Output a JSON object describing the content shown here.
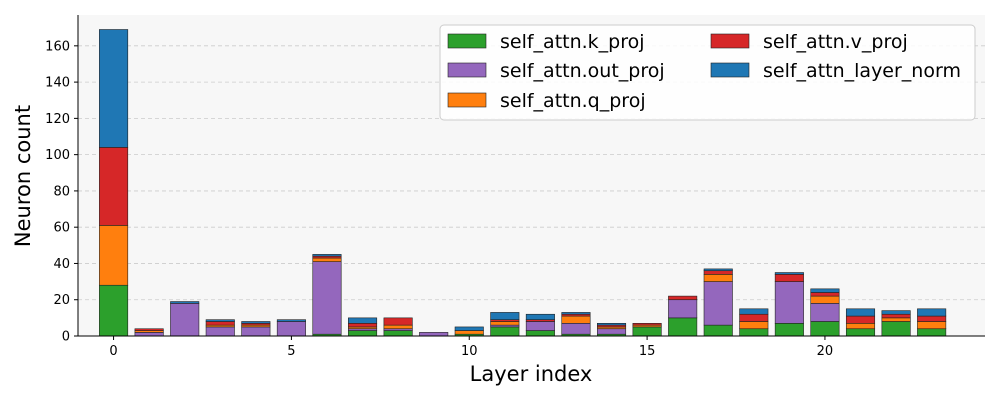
{
  "chart_data": {
    "type": "bar",
    "stacked": true,
    "xlabel": "Layer index",
    "ylabel": "Neuron count",
    "xlim": [
      -1,
      24.5
    ],
    "ylim": [
      0,
      177
    ],
    "xticks": [
      0,
      5,
      10,
      15,
      20
    ],
    "yticks": [
      0,
      20,
      40,
      60,
      80,
      100,
      120,
      140,
      160
    ],
    "grid": "y-dashed",
    "legend_position": "top-right",
    "categories": [
      0,
      1,
      2,
      3,
      4,
      5,
      6,
      7,
      8,
      9,
      10,
      11,
      12,
      13,
      14,
      15,
      16,
      17,
      18,
      19,
      20,
      21,
      22,
      23
    ],
    "series": [
      {
        "name": "self_attn.k_proj",
        "color": "#2ca02c",
        "values": [
          28,
          0,
          0,
          0,
          0,
          0,
          1,
          3,
          3,
          0,
          1,
          5,
          3,
          1,
          1,
          5,
          10,
          6,
          4,
          7,
          8,
          4,
          8,
          4
        ]
      },
      {
        "name": "self_attn.out_proj",
        "color": "#9467bd",
        "values": [
          0,
          2,
          18,
          5,
          5,
          8,
          40,
          1,
          1,
          2,
          0,
          1,
          5,
          6,
          3,
          0,
          10,
          24,
          0,
          23,
          10,
          0,
          0,
          0
        ]
      },
      {
        "name": "self_attn.q_proj",
        "color": "#ff7f0e",
        "values": [
          33,
          1,
          0,
          1,
          1,
          0,
          2,
          1,
          2,
          0,
          2,
          2,
          0,
          4,
          1,
          1,
          0,
          4,
          4,
          0,
          4,
          3,
          2,
          4
        ]
      },
      {
        "name": "self_attn.v_proj",
        "color": "#d62728",
        "values": [
          43,
          1,
          0,
          2,
          1,
          0,
          1,
          2,
          4,
          0,
          0,
          1,
          1,
          1,
          1,
          1,
          2,
          2,
          4,
          4,
          2,
          4,
          2,
          3
        ]
      },
      {
        "name": "self_attn_layer_norm",
        "color": "#1f77b4",
        "values": [
          65,
          0,
          1,
          1,
          1,
          1,
          1,
          3,
          0,
          0,
          2,
          4,
          3,
          1,
          1,
          0,
          0,
          1,
          3,
          1,
          2,
          4,
          2,
          4
        ]
      }
    ]
  }
}
